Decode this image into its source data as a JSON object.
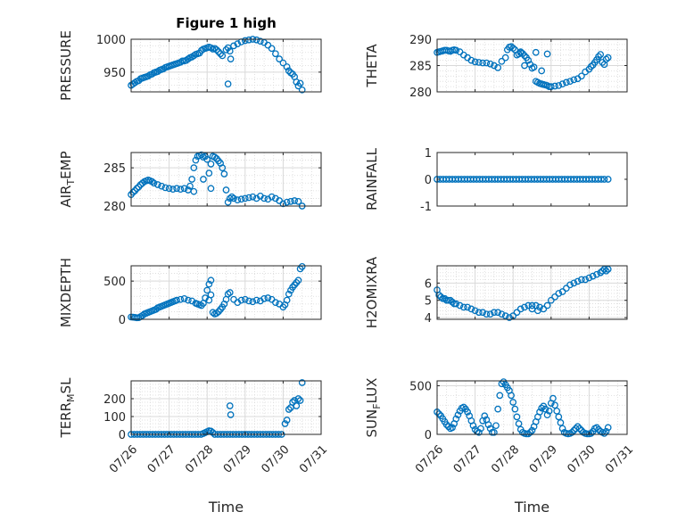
{
  "colors": {
    "marker": "#0072BD",
    "grid": "#d9d9d9",
    "axis": "#262626"
  },
  "chart_data": [
    {
      "type": "scatter",
      "title": "Figure 1 high",
      "ylabel": "PRESSURE",
      "ylabel_sub": "",
      "ylabel_rest": "",
      "xlabel": "",
      "xlim": [
        0,
        5
      ],
      "ylim": [
        920,
        1000
      ],
      "yticks": [
        950,
        1000
      ],
      "grid": "on",
      "marker": "circle",
      "x": [
        0.0,
        0.05,
        0.1,
        0.15,
        0.2,
        0.25,
        0.3,
        0.35,
        0.4,
        0.45,
        0.5,
        0.55,
        0.6,
        0.65,
        0.7,
        0.75,
        0.8,
        0.85,
        0.9,
        0.95,
        1.0,
        1.05,
        1.1,
        1.15,
        1.2,
        1.25,
        1.3,
        1.35,
        1.4,
        1.45,
        1.5,
        1.55,
        1.6,
        1.65,
        1.7,
        1.75,
        1.8,
        1.85,
        1.9,
        1.95,
        2.0,
        2.05,
        2.1,
        2.15,
        2.2,
        2.25,
        2.3,
        2.35,
        2.4,
        2.5,
        2.55,
        2.6,
        2.7,
        2.8,
        2.9,
        3.0,
        3.1,
        3.2,
        3.3,
        3.4,
        3.5,
        3.6,
        3.7,
        3.8,
        3.9,
        4.0,
        4.1,
        4.15,
        4.2,
        4.25,
        4.3,
        4.35,
        4.4,
        4.45,
        4.5,
        2.55,
        2.62
      ],
      "y": [
        930,
        932,
        934,
        936,
        937,
        940,
        941,
        942,
        943,
        944,
        946,
        947,
        949,
        950,
        951,
        953,
        954,
        955,
        957,
        958,
        959,
        960,
        961,
        962,
        963,
        964,
        965,
        967,
        967,
        968,
        970,
        972,
        973,
        975,
        977,
        978,
        979,
        983,
        985,
        986,
        987,
        988,
        987,
        985,
        986,
        984,
        981,
        978,
        975,
        984,
        987,
        982,
        990,
        993,
        996,
        998,
        999,
        1000,
        999,
        997,
        995,
        991,
        986,
        978,
        970,
        964,
        958,
        952,
        949,
        947,
        943,
        935,
        929,
        933,
        923,
        932,
        970
      ]
    },
    {
      "type": "scatter",
      "title": "",
      "ylabel": "THETA",
      "ylabel_sub": "",
      "ylabel_rest": "",
      "xlabel": "",
      "xlim": [
        0,
        5
      ],
      "ylim": [
        280,
        290
      ],
      "yticks": [
        280,
        285,
        290
      ],
      "grid": "on",
      "marker": "circle",
      "x": [
        0.0,
        0.05,
        0.1,
        0.15,
        0.2,
        0.25,
        0.3,
        0.35,
        0.4,
        0.45,
        0.5,
        0.6,
        0.7,
        0.8,
        0.9,
        1.0,
        1.1,
        1.2,
        1.3,
        1.4,
        1.5,
        1.6,
        1.7,
        1.8,
        1.85,
        1.9,
        1.95,
        2.0,
        2.05,
        2.1,
        2.15,
        2.2,
        2.25,
        2.3,
        2.35,
        2.4,
        2.45,
        2.5,
        2.55,
        2.6,
        2.65,
        2.7,
        2.75,
        2.8,
        2.85,
        2.9,
        2.95,
        3.0,
        3.1,
        3.2,
        3.3,
        3.4,
        3.5,
        3.6,
        3.7,
        3.8,
        3.9,
        4.0,
        4.05,
        4.1,
        4.15,
        4.2,
        4.25,
        4.3,
        4.35,
        4.4,
        4.45,
        4.5,
        2.2,
        2.3,
        2.6,
        2.75,
        2.9
      ],
      "y": [
        287.5,
        287.6,
        287.7,
        287.8,
        287.9,
        287.9,
        287.8,
        287.7,
        287.9,
        288.0,
        287.9,
        287.6,
        287.0,
        286.5,
        286.0,
        285.7,
        285.6,
        285.5,
        285.5,
        285.3,
        285.0,
        284.6,
        285.8,
        286.5,
        288.0,
        288.5,
        288.6,
        288.3,
        288.0,
        287.0,
        287.2,
        287.6,
        287.3,
        286.9,
        286.5,
        286.0,
        285.2,
        284.5,
        284.7,
        282.0,
        281.8,
        281.6,
        281.5,
        281.4,
        281.3,
        281.2,
        281.0,
        281.0,
        281.1,
        281.2,
        281.5,
        281.8,
        282.0,
        282.3,
        282.5,
        283.0,
        283.8,
        284.3,
        284.8,
        285.1,
        285.6,
        286.1,
        286.7,
        287.1,
        285.6,
        285.2,
        286.2,
        286.5,
        287.4,
        285.0,
        287.5,
        284.0,
        287.2
      ]
    },
    {
      "type": "scatter",
      "title": "",
      "ylabel": "AIR",
      "ylabel_sub": "T",
      "ylabel_rest": "EMP",
      "xlabel": "",
      "xlim": [
        0,
        5
      ],
      "ylim": [
        280,
        287
      ],
      "yticks": [
        280,
        285
      ],
      "grid": "on",
      "marker": "circle",
      "x": [
        0.0,
        0.05,
        0.1,
        0.15,
        0.2,
        0.25,
        0.3,
        0.35,
        0.4,
        0.45,
        0.5,
        0.55,
        0.6,
        0.7,
        0.8,
        0.9,
        1.0,
        1.1,
        1.2,
        1.3,
        1.4,
        1.5,
        1.55,
        1.6,
        1.65,
        1.7,
        1.75,
        1.8,
        1.85,
        1.9,
        1.95,
        2.0,
        2.05,
        2.1,
        2.15,
        2.2,
        2.25,
        2.3,
        2.35,
        2.4,
        2.45,
        2.5,
        2.55,
        2.6,
        2.65,
        2.7,
        2.8,
        2.9,
        3.0,
        3.1,
        3.2,
        3.3,
        3.4,
        3.5,
        3.6,
        3.7,
        3.8,
        3.9,
        4.0,
        4.1,
        4.2,
        4.3,
        4.4,
        4.5,
        1.65,
        1.9,
        2.1
      ],
      "y": [
        281.5,
        281.8,
        282.0,
        282.3,
        282.5,
        282.8,
        283.0,
        283.2,
        283.3,
        283.4,
        283.3,
        283.2,
        283.0,
        282.8,
        282.6,
        282.4,
        282.3,
        282.2,
        282.3,
        282.2,
        282.3,
        282.1,
        282.6,
        283.5,
        285.0,
        286.0,
        286.5,
        286.6,
        286.7,
        286.4,
        286.5,
        286.1,
        284.3,
        285.5,
        286.5,
        286.4,
        286.2,
        285.9,
        285.6,
        285.0,
        284.2,
        282.1,
        280.5,
        281.0,
        281.2,
        281.0,
        280.8,
        280.9,
        281.0,
        281.1,
        281.2,
        281.0,
        281.3,
        281.0,
        280.9,
        281.2,
        281.0,
        280.7,
        280.3,
        280.5,
        280.6,
        280.7,
        280.6,
        280.0,
        281.9,
        283.5,
        282.3
      ]
    },
    {
      "type": "scatter",
      "title": "",
      "ylabel": "RAINFALL",
      "ylabel_sub": "",
      "ylabel_rest": "",
      "xlabel": "",
      "xlim": [
        0,
        5
      ],
      "ylim": [
        -1,
        1
      ],
      "yticks": [
        -1,
        0,
        1
      ],
      "grid": "off",
      "marker": "circle",
      "x": [
        0.0,
        0.08,
        0.16,
        0.24,
        0.32,
        0.4,
        0.48,
        0.56,
        0.64,
        0.72,
        0.8,
        0.88,
        0.96,
        1.04,
        1.12,
        1.2,
        1.28,
        1.36,
        1.44,
        1.52,
        1.6,
        1.68,
        1.76,
        1.84,
        1.92,
        2.0,
        2.08,
        2.16,
        2.24,
        2.32,
        2.4,
        2.48,
        2.56,
        2.64,
        2.72,
        2.8,
        2.88,
        2.96,
        3.04,
        3.12,
        3.2,
        3.28,
        3.36,
        3.44,
        3.52,
        3.6,
        3.68,
        3.76,
        3.84,
        3.92,
        4.0,
        4.08,
        4.16,
        4.24,
        4.32,
        4.4,
        4.5
      ],
      "y": [
        0,
        0,
        0,
        0,
        0,
        0,
        0,
        0,
        0,
        0,
        0,
        0,
        0,
        0,
        0,
        0,
        0,
        0,
        0,
        0,
        0,
        0,
        0,
        0,
        0,
        0,
        0,
        0,
        0,
        0,
        0,
        0,
        0,
        0,
        0,
        0,
        0,
        0,
        0,
        0,
        0,
        0,
        0,
        0,
        0,
        0,
        0,
        0,
        0,
        0,
        0,
        0,
        0,
        0,
        0,
        0,
        0
      ]
    },
    {
      "type": "scatter",
      "title": "",
      "ylabel": "MIXDEPTH",
      "ylabel_sub": "",
      "ylabel_rest": "",
      "xlabel": "",
      "xlim": [
        0,
        5
      ],
      "ylim": [
        0,
        700
      ],
      "yticks": [
        0,
        500
      ],
      "grid": "on",
      "marker": "circle",
      "x": [
        0.0,
        0.05,
        0.1,
        0.15,
        0.2,
        0.25,
        0.3,
        0.35,
        0.4,
        0.45,
        0.5,
        0.55,
        0.6,
        0.65,
        0.7,
        0.75,
        0.8,
        0.85,
        0.9,
        0.95,
        1.0,
        1.05,
        1.1,
        1.15,
        1.2,
        1.3,
        1.4,
        1.5,
        1.6,
        1.7,
        1.75,
        1.8,
        1.85,
        1.9,
        1.95,
        2.0,
        2.05,
        2.1,
        2.15,
        2.2,
        2.25,
        2.3,
        2.35,
        2.4,
        2.45,
        2.5,
        2.55,
        2.6,
        2.7,
        2.8,
        2.9,
        3.0,
        3.1,
        3.2,
        3.3,
        3.4,
        3.5,
        3.6,
        3.7,
        3.8,
        3.9,
        4.0,
        4.05,
        4.1,
        4.15,
        4.2,
        4.25,
        4.3,
        4.35,
        4.4,
        4.45,
        4.5,
        2.05,
        2.1
      ],
      "y": [
        30,
        28,
        25,
        20,
        22,
        35,
        50,
        70,
        80,
        90,
        100,
        110,
        120,
        130,
        150,
        160,
        170,
        180,
        190,
        200,
        210,
        220,
        230,
        240,
        250,
        260,
        270,
        250,
        240,
        210,
        200,
        190,
        180,
        210,
        280,
        380,
        460,
        510,
        90,
        70,
        80,
        100,
        130,
        160,
        200,
        260,
        330,
        350,
        260,
        220,
        250,
        260,
        240,
        230,
        250,
        240,
        270,
        280,
        260,
        220,
        200,
        160,
        190,
        250,
        330,
        380,
        420,
        450,
        480,
        510,
        660,
        690,
        250,
        320
      ]
    },
    {
      "type": "scatter",
      "title": "",
      "ylabel": "H2OMIXRA",
      "ylabel_sub": "",
      "ylabel_rest": "",
      "xlabel": "",
      "xlim": [
        0,
        5
      ],
      "ylim": [
        3.9,
        7
      ],
      "yticks": [
        4,
        5,
        6
      ],
      "grid": "on",
      "marker": "circle",
      "x": [
        0.0,
        0.05,
        0.1,
        0.15,
        0.2,
        0.25,
        0.3,
        0.35,
        0.4,
        0.45,
        0.5,
        0.6,
        0.7,
        0.8,
        0.9,
        1.0,
        1.1,
        1.2,
        1.3,
        1.4,
        1.5,
        1.6,
        1.7,
        1.8,
        1.9,
        2.0,
        2.1,
        2.2,
        2.3,
        2.4,
        2.5,
        2.6,
        2.7,
        2.8,
        2.9,
        3.0,
        3.1,
        3.2,
        3.3,
        3.4,
        3.5,
        3.6,
        3.7,
        3.8,
        3.9,
        4.0,
        4.1,
        4.2,
        4.3,
        4.35,
        4.4,
        4.45,
        4.5,
        2.5,
        2.65
      ],
      "y": [
        5.6,
        5.3,
        5.2,
        5.1,
        5.1,
        5.0,
        5.0,
        5.0,
        4.9,
        4.8,
        4.8,
        4.7,
        4.6,
        4.6,
        4.5,
        4.4,
        4.3,
        4.3,
        4.2,
        4.2,
        4.3,
        4.3,
        4.2,
        4.1,
        4.0,
        4.1,
        4.3,
        4.5,
        4.6,
        4.7,
        4.7,
        4.7,
        4.6,
        4.5,
        4.7,
        5.0,
        5.2,
        5.4,
        5.5,
        5.7,
        5.9,
        6.0,
        6.1,
        6.2,
        6.2,
        6.3,
        6.4,
        6.5,
        6.6,
        6.7,
        6.8,
        6.7,
        6.8,
        4.5,
        4.4
      ]
    },
    {
      "type": "scatter",
      "title": "",
      "ylabel": "TERR",
      "ylabel_sub": "M",
      "ylabel_rest": "SL",
      "xlabel": "Time",
      "xlim": [
        0,
        5
      ],
      "ylim": [
        0,
        300
      ],
      "xticks": [
        "07/26",
        "07/27",
        "07/28",
        "07/29",
        "07/30",
        "07/31"
      ],
      "yticks": [
        0,
        100,
        200
      ],
      "grid": "on",
      "marker": "circle",
      "x": [
        0.0,
        0.08,
        0.16,
        0.24,
        0.32,
        0.4,
        0.48,
        0.56,
        0.64,
        0.72,
        0.8,
        0.88,
        0.96,
        1.04,
        1.12,
        1.2,
        1.28,
        1.36,
        1.44,
        1.52,
        1.6,
        1.68,
        1.76,
        1.84,
        1.9,
        1.95,
        2.0,
        2.05,
        2.1,
        2.15,
        2.2,
        2.28,
        2.36,
        2.44,
        2.52,
        2.6,
        2.68,
        2.76,
        2.84,
        2.92,
        3.0,
        3.08,
        3.16,
        3.24,
        3.32,
        3.4,
        3.48,
        3.56,
        3.64,
        3.72,
        3.8,
        3.88,
        3.96,
        4.05,
        4.1,
        4.15,
        4.2,
        4.25,
        4.3,
        4.35,
        4.4,
        4.45,
        4.5,
        2.6,
        2.62
      ],
      "y": [
        0,
        0,
        0,
        0,
        0,
        0,
        0,
        0,
        0,
        0,
        0,
        0,
        0,
        0,
        0,
        0,
        0,
        0,
        0,
        0,
        0,
        0,
        0,
        0,
        5,
        10,
        15,
        20,
        18,
        10,
        0,
        0,
        0,
        0,
        0,
        0,
        0,
        0,
        0,
        0,
        0,
        0,
        0,
        0,
        0,
        0,
        0,
        0,
        0,
        0,
        0,
        0,
        0,
        60,
        80,
        140,
        150,
        180,
        190,
        160,
        200,
        190,
        290,
        160,
        110
      ]
    },
    {
      "type": "scatter",
      "title": "",
      "ylabel": "SUN",
      "ylabel_sub": "F",
      "ylabel_rest": "LUX",
      "xlabel": "Time",
      "xlim": [
        0,
        5
      ],
      "ylim": [
        0,
        550
      ],
      "xticks": [
        "07/26",
        "07/27",
        "07/28",
        "07/29",
        "07/30",
        "07/31"
      ],
      "yticks": [
        0,
        500
      ],
      "grid": "on",
      "marker": "circle",
      "x": [
        0.0,
        0.05,
        0.1,
        0.15,
        0.2,
        0.25,
        0.3,
        0.35,
        0.4,
        0.45,
        0.5,
        0.55,
        0.6,
        0.65,
        0.7,
        0.75,
        0.8,
        0.85,
        0.9,
        0.95,
        1.0,
        1.05,
        1.1,
        1.15,
        1.2,
        1.25,
        1.3,
        1.35,
        1.4,
        1.45,
        1.5,
        1.55,
        1.6,
        1.65,
        1.7,
        1.75,
        1.8,
        1.85,
        1.9,
        1.95,
        2.0,
        2.05,
        2.1,
        2.15,
        2.2,
        2.25,
        2.3,
        2.35,
        2.4,
        2.45,
        2.5,
        2.55,
        2.6,
        2.65,
        2.7,
        2.75,
        2.8,
        2.85,
        2.9,
        2.95,
        3.0,
        3.05,
        3.1,
        3.15,
        3.2,
        3.25,
        3.3,
        3.35,
        3.4,
        3.45,
        3.5,
        3.55,
        3.6,
        3.65,
        3.7,
        3.75,
        3.8,
        3.85,
        3.9,
        3.95,
        4.0,
        4.05,
        4.1,
        4.15,
        4.2,
        4.25,
        4.3,
        4.35,
        4.4,
        4.45,
        4.5
      ],
      "y": [
        230,
        210,
        190,
        160,
        130,
        100,
        80,
        60,
        70,
        110,
        160,
        200,
        240,
        270,
        280,
        260,
        230,
        190,
        140,
        90,
        50,
        30,
        20,
        60,
        140,
        190,
        150,
        100,
        60,
        20,
        20,
        90,
        260,
        400,
        520,
        540,
        510,
        480,
        450,
        400,
        330,
        260,
        180,
        110,
        50,
        20,
        10,
        5,
        5,
        20,
        40,
        80,
        130,
        180,
        230,
        270,
        290,
        260,
        200,
        240,
        320,
        370,
        300,
        240,
        180,
        120,
        60,
        20,
        10,
        5,
        10,
        20,
        40,
        60,
        80,
        60,
        40,
        20,
        10,
        5,
        5,
        10,
        30,
        60,
        70,
        50,
        30,
        20,
        10,
        30,
        70
      ]
    }
  ]
}
